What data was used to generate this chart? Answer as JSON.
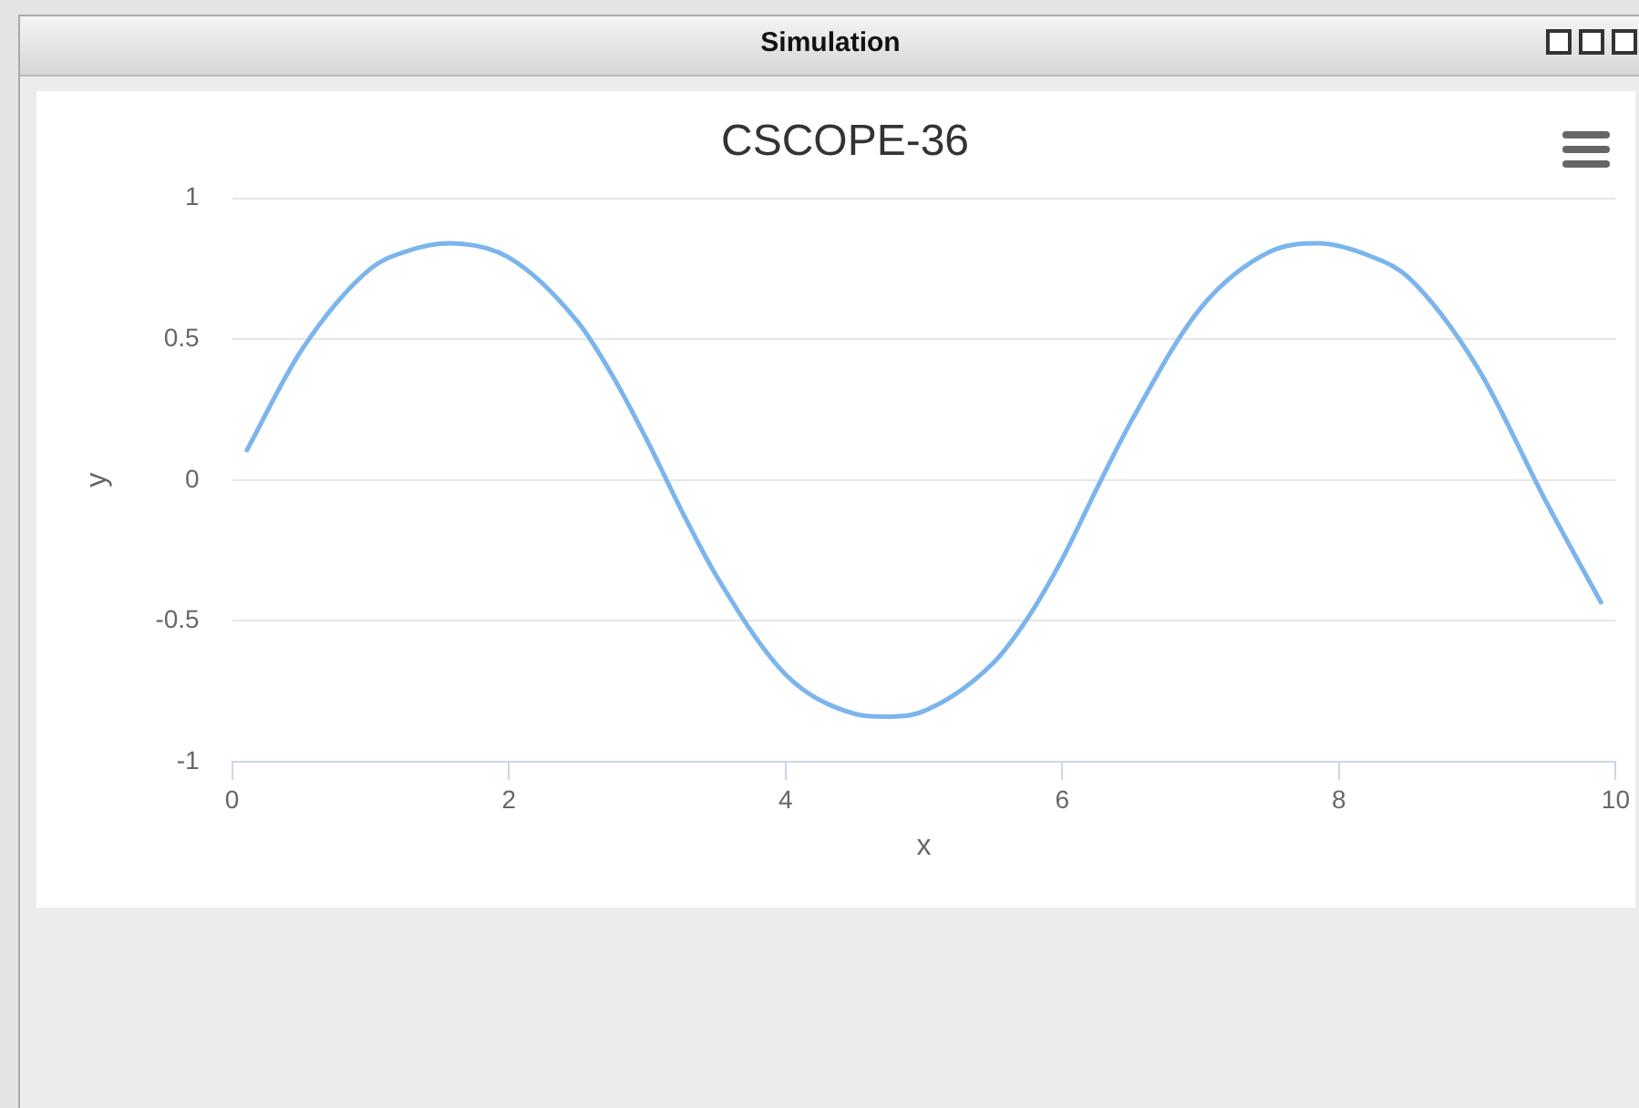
{
  "chart_data": {
    "type": "line",
    "title": "CSCOPE-36",
    "xlabel": "x",
    "ylabel": "y",
    "annotations": [
      "Simulation"
    ],
    "x": [
      0.1,
      0.5,
      1,
      1.25,
      1.57,
      2,
      2.5,
      2.75,
      3,
      3.25,
      3.5,
      4,
      4.5,
      4.71,
      5,
      5.5,
      5.75,
      6,
      6.25,
      6.5,
      7,
      7.5,
      7.85,
      8.25,
      8.5,
      9,
      9.5,
      9.9
    ],
    "series": [
      {
        "color": "#7cb5ec",
        "values": [
          0.1,
          0.46,
          0.75,
          0.81,
          0.84,
          0.79,
          0.56,
          0.37,
          0.14,
          -0.11,
          -0.34,
          -0.69,
          -0.83,
          -0.84,
          -0.82,
          -0.65,
          -0.49,
          -0.28,
          -0.03,
          0.21,
          0.61,
          0.81,
          0.84,
          0.79,
          0.72,
          0.4,
          -0.08,
          -0.44
        ]
      }
    ],
    "xlim": [
      0,
      10
    ],
    "xticks": [
      0,
      2,
      4,
      6,
      8,
      10
    ],
    "ylim": [
      -1,
      1
    ],
    "yticks": [
      -1,
      -0.5,
      0,
      0.5,
      1
    ],
    "grid": "y",
    "legend": false,
    "marker": "none",
    "line_style": "solid"
  }
}
